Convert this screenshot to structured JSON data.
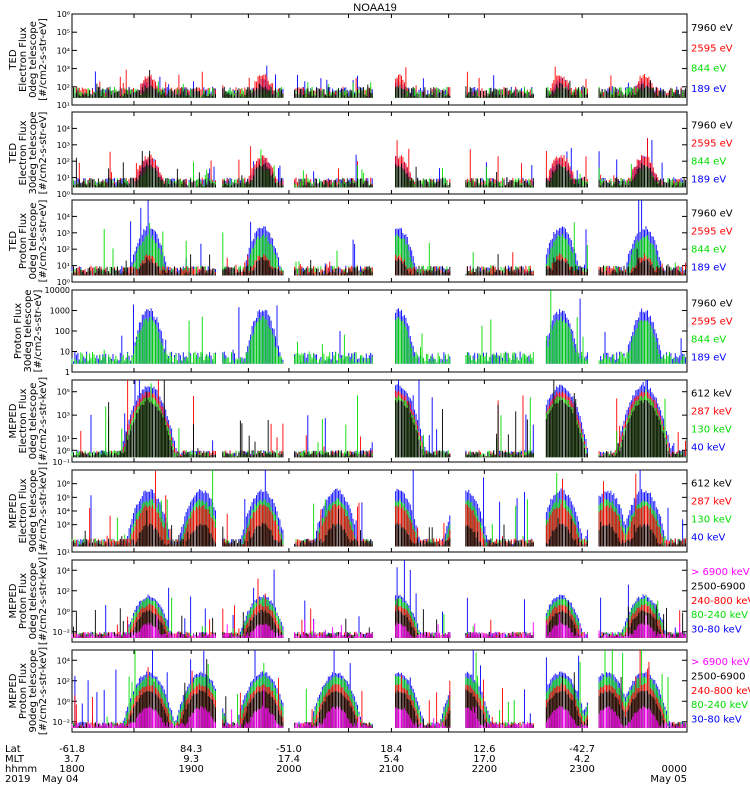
{
  "title": "NOAA19",
  "colors": {
    "black": "#000000",
    "red": "#ff0000",
    "green": "#00dd00",
    "blue": "#0000ff",
    "magenta": "#ff00ff"
  },
  "chart_data": [
    {
      "type": "scatter",
      "ylabel": [
        "TED",
        "Electron Flux",
        "0deg telescope",
        "[#/cm2-s-str-eV]"
      ],
      "yscale": "log",
      "ylim_exp": [
        1,
        6
      ],
      "ticks": [
        {
          "e": 1,
          "t": "10¹"
        },
        {
          "e": 2,
          "t": "10²"
        },
        {
          "e": 3,
          "t": "10³"
        },
        {
          "e": 4,
          "t": "10⁴"
        },
        {
          "e": 5,
          "t": "10⁵"
        },
        {
          "e": 6,
          "t": "10⁶"
        }
      ],
      "series": [
        {
          "name": "7960 eV",
          "color": "black"
        },
        {
          "name": "2595 eV",
          "color": "red"
        },
        {
          "name": "844 eV",
          "color": "green"
        },
        {
          "name": "189 eV",
          "color": "blue"
        }
      ],
      "peaks": [
        0.125,
        0.31,
        0.53,
        0.795,
        0.93
      ],
      "peak_levels": [
        {
          "color": "blue",
          "p": 2.4
        },
        {
          "color": "red",
          "p": 2.6
        },
        {
          "color": "green",
          "p": 1.8
        },
        {
          "color": "black",
          "p": 2.1
        }
      ]
    },
    {
      "type": "scatter",
      "ylabel": [
        "TED",
        "Electron Flux",
        "30deg telescope",
        "[#/cm2-s-str-eV]"
      ],
      "yscale": "log",
      "ylim_exp": [
        0,
        5
      ],
      "ticks": [
        {
          "e": 0,
          "t": "10⁰"
        },
        {
          "e": 1,
          "t": "10¹"
        },
        {
          "e": 2,
          "t": "10²"
        },
        {
          "e": 3,
          "t": "10³"
        },
        {
          "e": 4,
          "t": "10⁴"
        }
      ],
      "series": [
        {
          "name": "7960 eV",
          "color": "black"
        },
        {
          "name": "2595 eV",
          "color": "red"
        },
        {
          "name": "844 eV",
          "color": "green"
        },
        {
          "name": "189 eV",
          "color": "blue"
        }
      ],
      "peaks": [
        0.125,
        0.31,
        0.53,
        0.795,
        0.93
      ],
      "peak_levels": [
        {
          "color": "blue",
          "p": 2.2
        },
        {
          "color": "red",
          "p": 2.3
        },
        {
          "color": "green",
          "p": 1.6
        },
        {
          "color": "black",
          "p": 1.8
        }
      ]
    },
    {
      "type": "scatter",
      "ylabel": [
        "TED",
        "Proton Flux",
        "0deg telescope",
        "[#/cm2-s-str-eV]"
      ],
      "yscale": "log",
      "ylim_exp": [
        0,
        5
      ],
      "ticks": [
        {
          "e": 0,
          "t": "10⁰"
        },
        {
          "e": 1,
          "t": "10¹"
        },
        {
          "e": 2,
          "t": "10²"
        },
        {
          "e": 3,
          "t": "10³"
        },
        {
          "e": 4,
          "t": "10⁴"
        }
      ],
      "series": [
        {
          "name": "7960 eV",
          "color": "black"
        },
        {
          "name": "2595 eV",
          "color": "red"
        },
        {
          "name": "844 eV",
          "color": "green"
        },
        {
          "name": "189 eV",
          "color": "blue"
        }
      ],
      "peaks": [
        0.125,
        0.31,
        0.53,
        0.795,
        0.93
      ],
      "peak_levels": [
        {
          "color": "blue",
          "p": 3.3
        },
        {
          "color": "green",
          "p": 2.8
        },
        {
          "color": "red",
          "p": 1.6
        },
        {
          "color": "black",
          "p": 1.4
        }
      ]
    },
    {
      "type": "scatter",
      "ylabel": [
        "Proton Flux",
        "30deg telescope",
        "[#/cm2-s-str-eV]"
      ],
      "yscale": "log",
      "ylim_exp": [
        0,
        4
      ],
      "ticks": [
        {
          "e": 0,
          "t": "1"
        },
        {
          "e": 1,
          "t": "10"
        },
        {
          "e": 2,
          "t": "100"
        },
        {
          "e": 3,
          "t": "1000"
        },
        {
          "e": 4,
          "t": "10000"
        }
      ],
      "series": [
        {
          "name": "7960 eV",
          "color": "black"
        },
        {
          "name": "2595 eV",
          "color": "red"
        },
        {
          "name": "844 eV",
          "color": "green"
        },
        {
          "name": "189 eV",
          "color": "blue"
        }
      ],
      "peaks": [
        0.125,
        0.31,
        0.53,
        0.795,
        0.93
      ],
      "peak_levels": [
        {
          "color": "blue",
          "p": 3.0
        },
        {
          "color": "green",
          "p": 2.6
        }
      ]
    },
    {
      "type": "scatter",
      "ylabel": [
        "MEPED",
        "Electron Flux",
        "0deg telescope",
        "[#/cm2-s-str-keV]"
      ],
      "yscale": "log",
      "ylim_exp": [
        -1,
        6
      ],
      "ticks": [
        {
          "e": -1,
          "t": "10⁻¹"
        },
        {
          "e": 0,
          "t": "10⁰"
        },
        {
          "e": 1,
          "t": "10¹"
        },
        {
          "e": 3,
          "t": "10³"
        },
        {
          "e": 5,
          "t": "10⁵"
        }
      ],
      "series": [
        {
          "name": "612 keV",
          "color": "black"
        },
        {
          "name": "287 keV",
          "color": "red"
        },
        {
          "name": "130 keV",
          "color": "green"
        },
        {
          "name": "40 keV",
          "color": "blue"
        }
      ],
      "peaks": [
        0.125,
        0.53,
        0.795,
        0.93
      ],
      "peak_levels": [
        {
          "color": "blue",
          "p": 5.5
        },
        {
          "color": "red",
          "p": 5.0
        },
        {
          "color": "green",
          "p": 4.6
        },
        {
          "color": "black",
          "p": 4.2
        }
      ]
    },
    {
      "type": "scatter",
      "ylabel": [
        "MEPED",
        "Electron Flux",
        "90deg telescope",
        "[#/cm2-s-str-keV]"
      ],
      "yscale": "log",
      "ylim_exp": [
        1,
        7
      ],
      "ticks": [
        {
          "e": 1,
          "t": "10¹"
        },
        {
          "e": 3,
          "t": "10³"
        },
        {
          "e": 4,
          "t": "10⁴"
        },
        {
          "e": 5,
          "t": "10⁵"
        },
        {
          "e": 6,
          "t": "10⁶"
        }
      ],
      "series": [
        {
          "name": "612 keV",
          "color": "black"
        },
        {
          "name": "287 keV",
          "color": "red"
        },
        {
          "name": "130 keV",
          "color": "green"
        },
        {
          "name": "40 keV",
          "color": "blue"
        }
      ],
      "peaks": [
        0.125,
        0.21,
        0.31,
        0.43,
        0.53,
        0.64,
        0.795,
        0.87,
        0.93
      ],
      "peak_levels": [
        {
          "color": "blue",
          "p": 5.5
        },
        {
          "color": "green",
          "p": 4.8
        },
        {
          "color": "red",
          "p": 4.4
        },
        {
          "color": "black",
          "p": 3.0
        }
      ]
    },
    {
      "type": "scatter",
      "ylabel": [
        "MEPED",
        "Proton Flux",
        "0deg telescope",
        "[#/cm2-s-str-keV]"
      ],
      "yscale": "log",
      "ylim_exp": [
        -3,
        5
      ],
      "ticks": [
        {
          "e": -2,
          "t": "10⁻²"
        },
        {
          "e": 0,
          "t": "10⁰"
        },
        {
          "e": 2,
          "t": "10²"
        },
        {
          "e": 4,
          "t": "10⁴"
        }
      ],
      "series": [
        {
          "name": "> 6900 keV",
          "color": "magenta"
        },
        {
          "name": "2500-6900",
          "color": "black"
        },
        {
          "name": "240-800 keV",
          "color": "red"
        },
        {
          "name": "80-240 keV",
          "color": "green"
        },
        {
          "name": "30-80 keV",
          "color": "blue"
        }
      ],
      "peaks": [
        0.125,
        0.31,
        0.53,
        0.795,
        0.93
      ],
      "peak_levels": [
        {
          "color": "blue",
          "p": 1.5
        },
        {
          "color": "green",
          "p": 1.2
        },
        {
          "color": "red",
          "p": 0.6
        },
        {
          "color": "black",
          "p": 0.0
        },
        {
          "color": "magenta",
          "p": -1.2
        }
      ]
    },
    {
      "type": "scatter",
      "ylabel": [
        "MEPED",
        "Proton Flux",
        "90deg telescope",
        "[#/cm2-s-str-keV]"
      ],
      "yscale": "log",
      "ylim_exp": [
        -3,
        5
      ],
      "ticks": [
        {
          "e": -2,
          "t": "10⁻²"
        },
        {
          "e": 0,
          "t": "10⁰"
        },
        {
          "e": 2,
          "t": "10²"
        },
        {
          "e": 4,
          "t": "10⁴"
        }
      ],
      "series": [
        {
          "name": "> 6900 keV",
          "color": "magenta"
        },
        {
          "name": "2500-6900",
          "color": "black"
        },
        {
          "name": "240-800 keV",
          "color": "red"
        },
        {
          "name": "80-240 keV",
          "color": "green"
        },
        {
          "name": "30-80 keV",
          "color": "blue"
        }
      ],
      "peaks": [
        0.125,
        0.21,
        0.31,
        0.43,
        0.53,
        0.64,
        0.795,
        0.87,
        0.93
      ],
      "peak_levels": [
        {
          "color": "blue",
          "p": 2.8
        },
        {
          "color": "green",
          "p": 2.4
        },
        {
          "color": "red",
          "p": 1.6
        },
        {
          "color": "black",
          "p": 1.0
        },
        {
          "color": "magenta",
          "p": -0.6
        }
      ]
    }
  ],
  "xaxis": {
    "row_labels": [
      "Lat",
      "MLT",
      "hhmm",
      "2019"
    ],
    "ticks": [
      {
        "pos": 0.0,
        "lat": "-61.8",
        "mlt": "3.7",
        "hhmm": "1800",
        "date": "May 04"
      },
      {
        "pos": 0.13,
        "lat": "",
        "mlt": "",
        "hhmm": "",
        "date": ""
      },
      {
        "pos": 0.25,
        "lat": "84.3",
        "mlt": "9.3",
        "hhmm": "1900",
        "date": ""
      },
      {
        "pos": 0.37,
        "lat": "",
        "mlt": "",
        "hhmm": "",
        "date": ""
      },
      {
        "pos": 0.455,
        "lat": "-51.0",
        "mlt": "17.4",
        "hhmm": "2000",
        "date": ""
      },
      {
        "pos": 0.58,
        "lat": "",
        "mlt": "",
        "hhmm": "",
        "date": ""
      },
      {
        "pos": 0.67,
        "lat": "18.4",
        "mlt": "5.4",
        "hhmm": "2100",
        "date": ""
      },
      {
        "pos": 0.79,
        "lat": "",
        "mlt": "",
        "hhmm": "",
        "date": ""
      },
      {
        "pos": 0.865,
        "lat": "12.6",
        "mlt": "17.0",
        "hhmm": "2200",
        "date": ""
      },
      {
        "pos": 1.07,
        "lat": "-42.7",
        "mlt": "4.2",
        "hhmm": "2300",
        "date": ""
      },
      {
        "pos": 1.29,
        "lat": "",
        "mlt": "",
        "hhmm": "0000",
        "date": "May 05"
      }
    ]
  }
}
